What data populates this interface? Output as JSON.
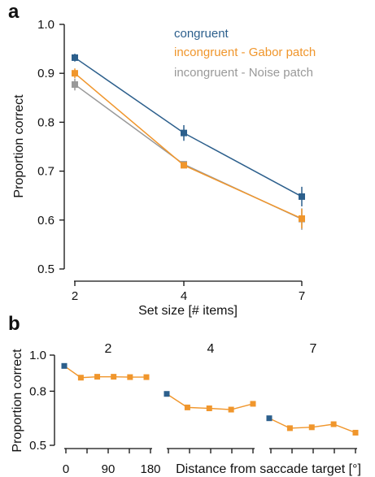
{
  "chart_data": [
    {
      "panel": "a",
      "type": "line",
      "xlabel": "Set size [# items]",
      "ylabel": "Proportion correct",
      "categories": [
        "2",
        "4",
        "7"
      ],
      "ylim": [
        0.5,
        1.0
      ],
      "yticks": [
        "0.5",
        "0.6",
        "0.7",
        "0.8",
        "0.9",
        "1.0"
      ],
      "legend_position": "top-right",
      "series": [
        {
          "name": "congruent",
          "color": "#2c5f8c",
          "values": [
            0.932,
            0.778,
            0.648
          ],
          "error": [
            0.008,
            0.016,
            0.02
          ]
        },
        {
          "name": "incongruent - Gabor patch",
          "color": "#f0962c",
          "values": [
            0.9,
            0.712,
            0.603
          ],
          "error": [
            0.01,
            0.006,
            0.02
          ]
        },
        {
          "name": "incongruent - Noise patch",
          "color": "#999999",
          "values": [
            0.877,
            0.714,
            0.602
          ],
          "error": [
            0.012,
            0.006,
            0.022
          ]
        }
      ]
    },
    {
      "panel": "b",
      "type": "line",
      "ylabel": "Proportion correct",
      "xlabel": "Distance from saccade target [°]",
      "xticks": [
        "0",
        "90",
        "180"
      ],
      "ylim": [
        0.5,
        1.0
      ],
      "yticks": [
        "0.5",
        "0.8",
        "1.0"
      ],
      "facets": [
        {
          "label": "2",
          "congruent": 0.94,
          "incongruent": [
            0.875,
            0.88,
            0.88,
            0.878,
            0.878
          ]
        },
        {
          "label": "4",
          "congruent": 0.785,
          "incongruent": [
            0.71,
            0.705,
            0.698,
            0.73
          ]
        },
        {
          "label": "7",
          "congruent": 0.65,
          "incongruent": [
            0.595,
            0.6,
            0.617,
            0.57
          ]
        }
      ]
    }
  ]
}
